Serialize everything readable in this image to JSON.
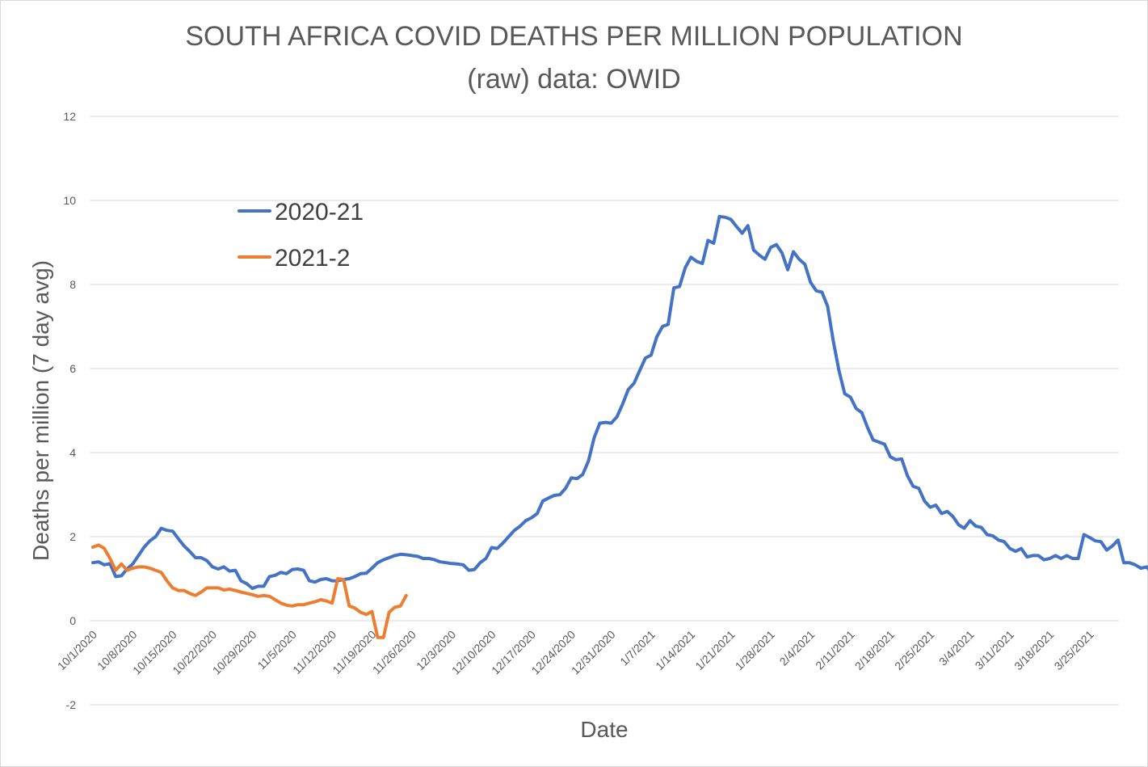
{
  "chart_data": {
    "type": "line",
    "title_line1": "SOUTH AFRICA COVID DEATHS PER MILLION POPULATION",
    "title_line2": "(raw)  data: OWID",
    "xlabel": "Date",
    "ylabel": "Deaths per million (7 day avg)",
    "ylim": [
      -2,
      12
    ],
    "yticks": [
      "-2",
      "0",
      "2",
      "4",
      "6",
      "8",
      "10",
      "12"
    ],
    "x_start": "10/1/2020",
    "x_days": 182,
    "xtick_labels": [
      "10/1/2020",
      "10/8/2020",
      "10/15/2020",
      "10/22/2020",
      "10/29/2020",
      "11/5/2020",
      "11/12/2020",
      "11/19/2020",
      "11/26/2020",
      "12/3/2020",
      "12/10/2020",
      "12/17/2020",
      "12/24/2020",
      "12/31/2020",
      "1/7/2021",
      "1/14/2021",
      "1/21/2021",
      "1/28/2021",
      "2/4/2021",
      "2/11/2021",
      "2/18/2021",
      "2/25/2021",
      "3/4/2021",
      "3/11/2021",
      "3/18/2021",
      "3/25/2021"
    ],
    "legend_position": "upper-left",
    "series": [
      {
        "name": "2020-21",
        "color": "#4472c4",
        "values": [
          1.38,
          1.4,
          1.33,
          1.36,
          1.05,
          1.07,
          1.23,
          1.35,
          1.55,
          1.75,
          1.9,
          2.0,
          2.2,
          2.15,
          2.13,
          1.95,
          1.78,
          1.65,
          1.5,
          1.5,
          1.43,
          1.28,
          1.23,
          1.28,
          1.18,
          1.2,
          0.95,
          0.88,
          0.77,
          0.82,
          0.82,
          1.05,
          1.08,
          1.15,
          1.12,
          1.22,
          1.23,
          1.2,
          0.95,
          0.92,
          0.98,
          1.0,
          0.95,
          0.95,
          0.98,
          1.0,
          1.05,
          1.12,
          1.13,
          1.25,
          1.38,
          1.45,
          1.5,
          1.55,
          1.58,
          1.57,
          1.55,
          1.53,
          1.48,
          1.48,
          1.45,
          1.4,
          1.38,
          1.36,
          1.35,
          1.33,
          1.2,
          1.22,
          1.38,
          1.48,
          1.74,
          1.72,
          1.85,
          2.0,
          2.15,
          2.25,
          2.38,
          2.45,
          2.55,
          2.85,
          2.92,
          2.98,
          3.0,
          3.15,
          3.4,
          3.38,
          3.48,
          3.8,
          4.35,
          4.7,
          4.72,
          4.7,
          4.85,
          5.15,
          5.5,
          5.65,
          5.95,
          6.25,
          6.32,
          6.75,
          7.0,
          7.05,
          7.92,
          7.95,
          8.4,
          8.65,
          8.55,
          8.5,
          9.05,
          8.98,
          9.62,
          9.6,
          9.55,
          9.38,
          9.22,
          9.4,
          8.82,
          8.7,
          8.6,
          8.88,
          8.95,
          8.75,
          8.35,
          8.78,
          8.6,
          8.48,
          8.05,
          7.85,
          7.82,
          7.48,
          6.65,
          5.95,
          5.4,
          5.32,
          5.05,
          4.95,
          4.6,
          4.3,
          4.25,
          4.2,
          3.9,
          3.83,
          3.85,
          3.45,
          3.2,
          3.15,
          2.85,
          2.7,
          2.75,
          2.55,
          2.6,
          2.48,
          2.28,
          2.2,
          2.38,
          2.25,
          2.22,
          2.05,
          2.02,
          1.92,
          1.88,
          1.72,
          1.65,
          1.72,
          1.52,
          1.55,
          1.55,
          1.45,
          1.48,
          1.55,
          1.48,
          1.55,
          1.48,
          1.48,
          2.05,
          1.98,
          1.9,
          1.88,
          1.68,
          1.78,
          1.92,
          1.38,
          1.38,
          1.33,
          1.25,
          1.28,
          1.13
        ]
      },
      {
        "name": "2021-2",
        "color": "#ed7d31",
        "values": [
          1.75,
          1.8,
          1.72,
          1.48,
          1.2,
          1.35,
          1.2,
          1.25,
          1.28,
          1.28,
          1.25,
          1.2,
          1.15,
          0.95,
          0.78,
          0.72,
          0.72,
          0.65,
          0.6,
          0.68,
          0.78,
          0.78,
          0.78,
          0.73,
          0.75,
          0.72,
          0.68,
          0.65,
          0.62,
          0.58,
          0.6,
          0.58,
          0.5,
          0.42,
          0.37,
          0.35,
          0.38,
          0.38,
          0.42,
          0.45,
          0.5,
          0.47,
          0.42,
          1.0,
          0.98,
          0.35,
          0.3,
          0.2,
          0.15,
          0.22,
          -0.4,
          -0.4,
          0.2,
          0.32,
          0.35,
          0.6
        ]
      }
    ]
  }
}
